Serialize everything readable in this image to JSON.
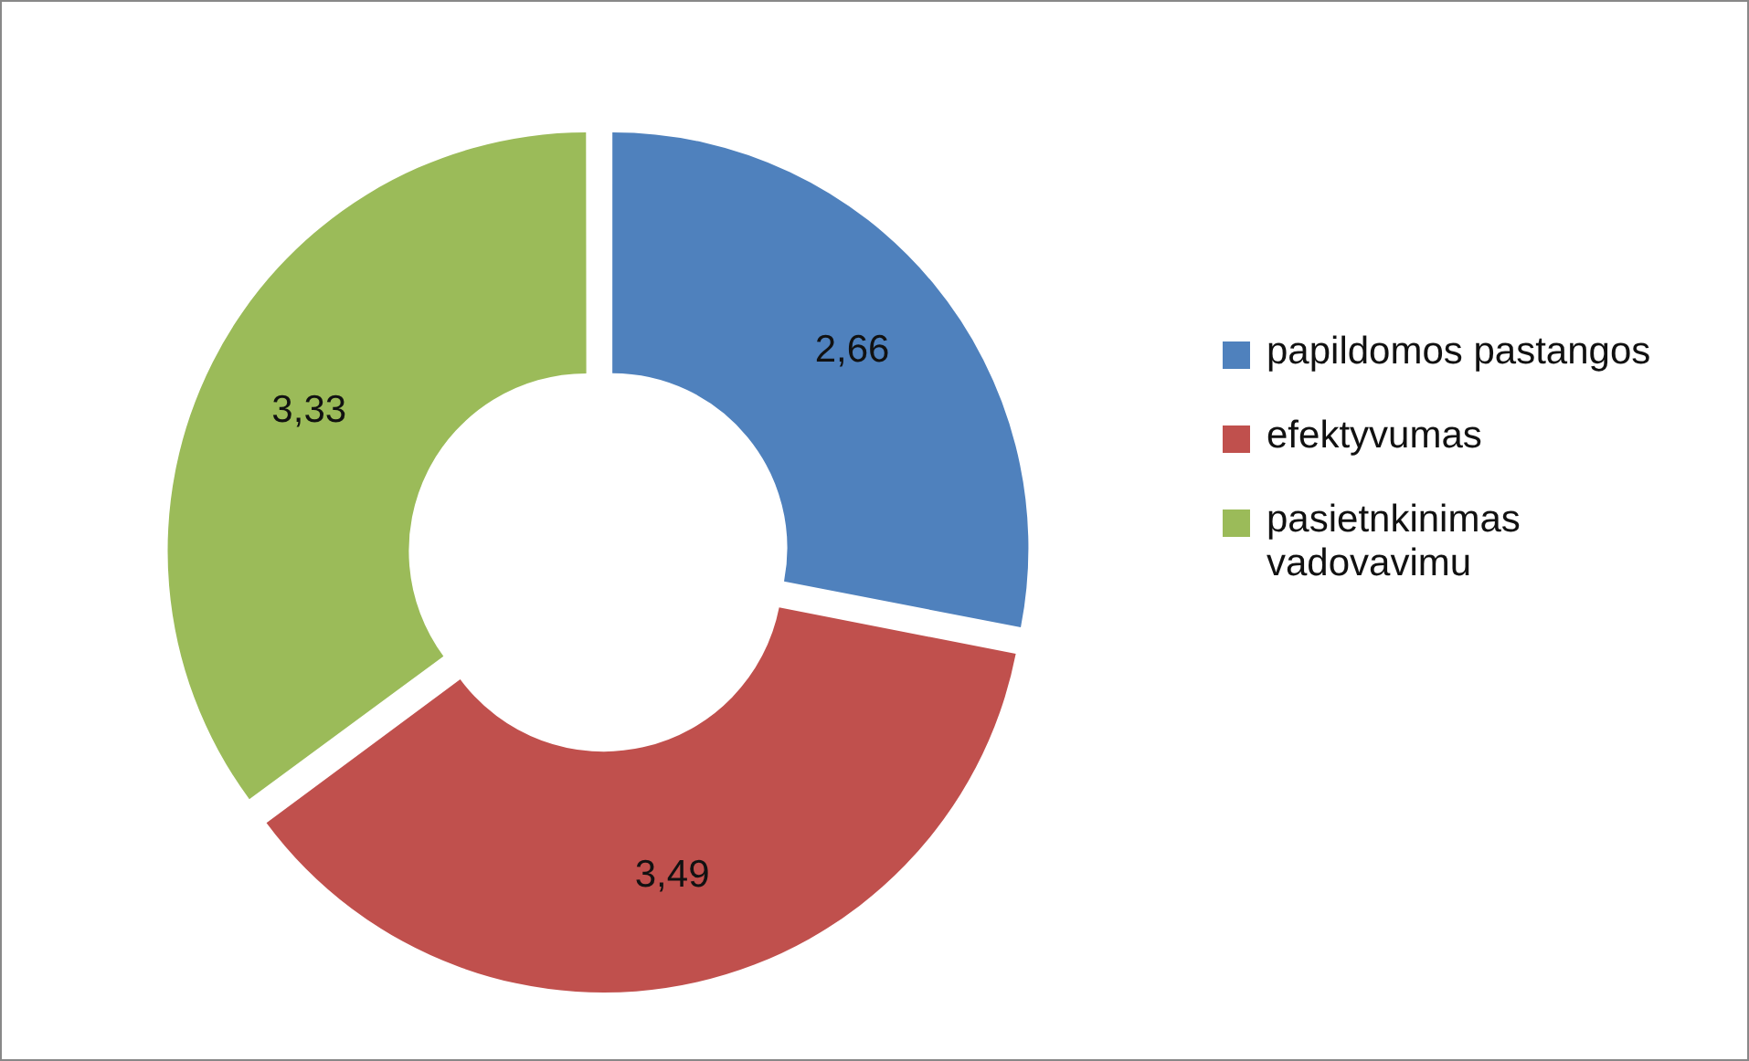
{
  "chart_data": {
    "type": "donut",
    "categories": [
      "papildomos pastangos",
      "efektyvumas",
      "pasietnkinimas vadovavimu"
    ],
    "values": [
      2.66,
      3.49,
      3.33
    ],
    "colors": [
      "#4f81bd",
      "#c0504d",
      "#9bbb59"
    ],
    "value_labels": [
      "2,66",
      "3,49",
      "3,33"
    ],
    "legend": "right"
  }
}
